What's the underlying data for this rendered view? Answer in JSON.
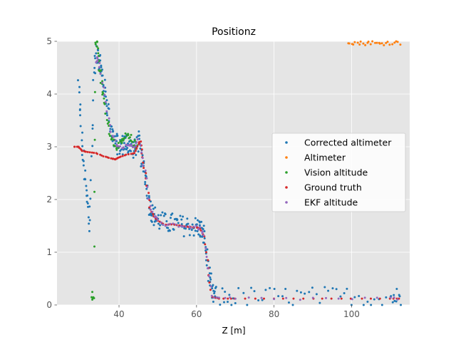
{
  "chart_data": {
    "type": "scatter",
    "title": "Positionz",
    "xlabel": "Z [m]",
    "ylabel": "",
    "xlim": [
      24,
      115
    ],
    "ylim": [
      0,
      5
    ],
    "xticks": [
      40,
      60,
      80,
      100
    ],
    "yticks": [
      0,
      1,
      2,
      3,
      4,
      5
    ],
    "grid": true,
    "legend_position": "center-right",
    "series": [
      {
        "name": "Corrected altimeter",
        "color": "#1f77b4",
        "noise": 0.2,
        "density": 10,
        "x": [
          29.5,
          30.5,
          31.5,
          32.5,
          33.5,
          34.5,
          35,
          36,
          37,
          38,
          39,
          40,
          41,
          42,
          43,
          44,
          45,
          46,
          47,
          48,
          49,
          50,
          52,
          54,
          56,
          58,
          60,
          61,
          62,
          63,
          64,
          65,
          70,
          80,
          90,
          100,
          110,
          113
        ],
        "y": [
          4.2,
          3.0,
          2.2,
          1.5,
          4.5,
          4.8,
          4.6,
          4.2,
          3.8,
          3.3,
          3.1,
          3.0,
          3.05,
          3.1,
          3.0,
          2.95,
          3.1,
          2.7,
          2.4,
          1.85,
          1.7,
          1.6,
          1.55,
          1.55,
          1.5,
          1.5,
          1.48,
          1.45,
          1.3,
          0.7,
          0.2,
          0.15,
          0.15,
          0.15,
          0.15,
          0.15,
          0.15,
          0.15
        ]
      },
      {
        "name": "Altimeter",
        "color": "#ff7f0e",
        "noise": 0.04,
        "density": 4,
        "x": [
          99,
          101,
          103,
          105,
          107,
          109,
          111,
          113
        ],
        "y": [
          5.0,
          4.97,
          4.96,
          4.98,
          4.95,
          4.97,
          4.98,
          4.97
        ]
      },
      {
        "name": "Vision altitude",
        "color": "#2ca02c",
        "noise": 0.08,
        "density": 5,
        "x": [
          33,
          33.5,
          34,
          34.5,
          35,
          35.5,
          36,
          37,
          38,
          39,
          40,
          41,
          42,
          43,
          44,
          45
        ],
        "y": [
          0.2,
          0.15,
          5.0,
          4.9,
          4.5,
          4.2,
          3.9,
          3.5,
          3.2,
          3.05,
          3.0,
          3.1,
          3.2,
          3.15,
          3.05,
          3.0
        ]
      },
      {
        "name": "Ground truth",
        "color": "#d62728",
        "noise": 0.0,
        "density": 4,
        "x": [
          28.5,
          29.5,
          30.5,
          32,
          34,
          36,
          38,
          39,
          40,
          42,
          44,
          45,
          45.5,
          46,
          47,
          48,
          49,
          50,
          52,
          54,
          56,
          58,
          60,
          61,
          62,
          63,
          64,
          66,
          70,
          80,
          90,
          100,
          110,
          113
        ],
        "y": [
          3.0,
          3.0,
          2.92,
          2.9,
          2.88,
          2.82,
          2.78,
          2.76,
          2.8,
          2.85,
          2.88,
          3.05,
          3.1,
          2.8,
          2.4,
          1.85,
          1.68,
          1.6,
          1.52,
          1.53,
          1.5,
          1.48,
          1.47,
          1.45,
          1.3,
          0.7,
          0.15,
          0.12,
          0.12,
          0.12,
          0.12,
          0.12,
          0.12,
          0.12
        ]
      },
      {
        "name": "EKF altitude",
        "color": "#9467bd",
        "noise": 0.03,
        "density": 3,
        "x": [
          34,
          34.5,
          35,
          36,
          37,
          38,
          39,
          40,
          41,
          42,
          43,
          44,
          45,
          46,
          47,
          48,
          49,
          50,
          52,
          54,
          56,
          58,
          60,
          61,
          62,
          63,
          64,
          66,
          70,
          80,
          90,
          100,
          110,
          113
        ],
        "y": [
          4.6,
          4.7,
          4.5,
          4.1,
          3.7,
          3.3,
          3.1,
          3.0,
          3.0,
          3.02,
          3.05,
          3.0,
          3.12,
          2.8,
          2.4,
          1.85,
          1.68,
          1.6,
          1.52,
          1.53,
          1.5,
          1.48,
          1.47,
          1.45,
          1.3,
          0.7,
          0.15,
          0.12,
          0.12,
          0.12,
          0.12,
          0.12,
          0.12,
          0.12
        ]
      }
    ]
  }
}
